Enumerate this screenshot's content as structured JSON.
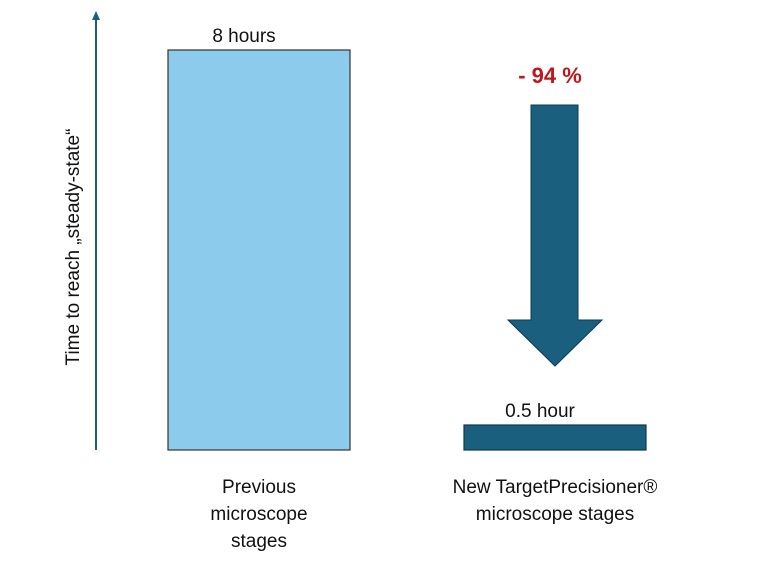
{
  "chart_data": {
    "type": "bar",
    "y_label": "Time to reach „steady-state“",
    "categories": [
      "Previous microscope stages",
      "New TargetPrecisioner® microscope stages"
    ],
    "values": [
      8,
      0.5
    ],
    "value_labels": [
      "8 hours",
      "0.5 hour"
    ],
    "colors": [
      "#8ccbeb",
      "#1b5f7f"
    ],
    "annotation": "- 94 %",
    "annotation_color": "#c0171c",
    "ylim": [
      0,
      8.7
    ]
  }
}
